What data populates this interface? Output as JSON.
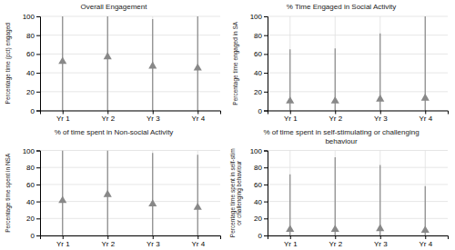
{
  "chart_data": [
    {
      "type": "range",
      "title": "Overall Engagement",
      "ylabel": "Percentage time (pct) engaged",
      "categories": [
        "Yr 1",
        "Yr 2",
        "Yr 3",
        "Yr 4"
      ],
      "values": [
        52,
        57,
        47,
        45
      ],
      "lows": [
        0,
        0,
        0,
        0
      ],
      "highs": [
        100,
        100,
        97,
        100
      ],
      "color": "#888888",
      "marker": "triangle",
      "ylim": [
        0,
        100
      ],
      "yticks": [
        0,
        20,
        40,
        60,
        80,
        100
      ],
      "grid": true
    },
    {
      "type": "range",
      "title": "% Time Engaged in Social Activity",
      "ylabel": "Percentage time engaged in SA",
      "categories": [
        "Yr 1",
        "Yr 2",
        "Yr 3",
        "Yr 4"
      ],
      "values": [
        10,
        10,
        12,
        13
      ],
      "lows": [
        0,
        0,
        0,
        0
      ],
      "highs": [
        65,
        66,
        82,
        100
      ],
      "color": "#888888",
      "marker": "triangle",
      "ylim": [
        0,
        100
      ],
      "yticks": [
        0,
        20,
        40,
        60,
        80,
        100
      ],
      "grid": true
    },
    {
      "type": "range",
      "title": "% of time spent in Non-social Activity",
      "ylabel": "Percentage time spent in NSA",
      "categories": [
        "Yr 1",
        "Yr 2",
        "Yr 3",
        "Yr 4"
      ],
      "values": [
        41,
        48,
        37,
        33
      ],
      "lows": [
        0,
        0,
        0,
        0
      ],
      "highs": [
        100,
        100,
        97,
        95
      ],
      "color": "#888888",
      "marker": "triangle",
      "ylim": [
        0,
        100
      ],
      "yticks": [
        0,
        20,
        40,
        60,
        80,
        100
      ],
      "grid": true
    },
    {
      "type": "range",
      "title": "% of time spent in self-stimulating or challenging\nbehaviour",
      "ylabel": "Percentage time spent in self-stim\nor challenging behaviour",
      "categories": [
        "Yr 1",
        "Yr 2",
        "Yr 3",
        "Yr 4"
      ],
      "values": [
        7,
        7,
        8,
        6
      ],
      "lows": [
        0,
        0,
        0,
        0
      ],
      "highs": [
        72,
        92,
        83,
        58
      ],
      "color": "#888888",
      "marker": "triangle",
      "ylim": [
        0,
        100
      ],
      "yticks": [
        0,
        20,
        40,
        60,
        80,
        100
      ],
      "grid": true
    }
  ]
}
